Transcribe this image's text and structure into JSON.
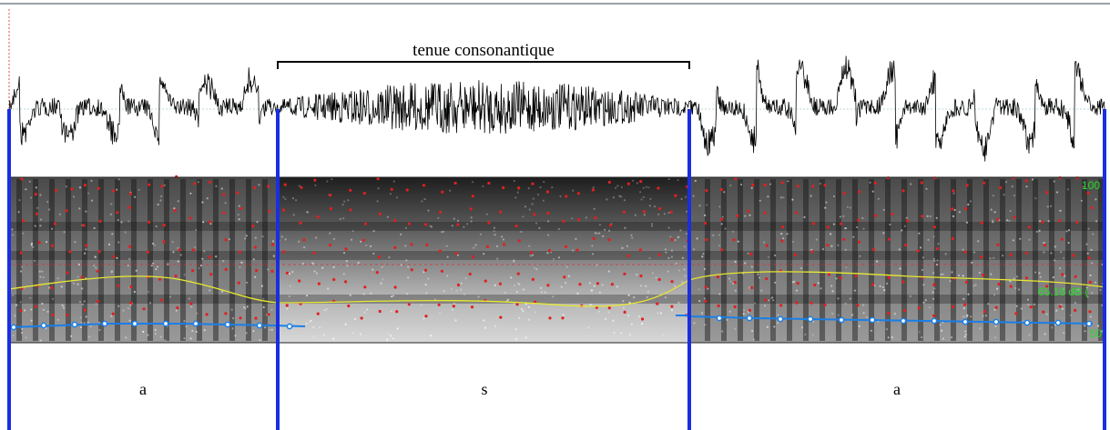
{
  "annotation": {
    "label": "tenue consonantique"
  },
  "spectrogram": {
    "labels": [
      "100",
      "65.18 dB (",
      "50"
    ]
  },
  "tier": {
    "intervals": [
      "a",
      "s",
      "a"
    ]
  }
}
